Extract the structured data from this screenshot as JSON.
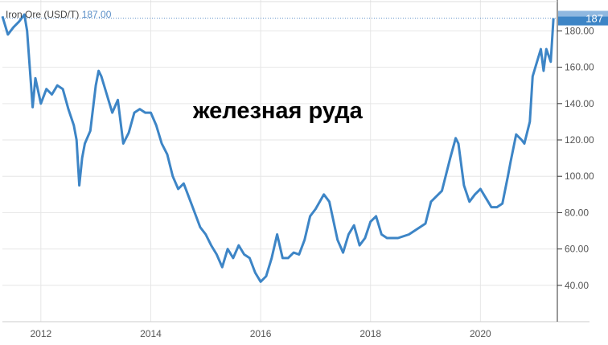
{
  "chart_data": {
    "type": "line",
    "title": "",
    "overlay_text": "железная руда",
    "legend": {
      "name": "Iron Ore (USD/T)",
      "value": "187.00"
    },
    "last_value_label": "187",
    "xlabel": "",
    "ylabel": "",
    "xlim": [
      2011.3,
      2021.4
    ],
    "ylim": [
      20,
      197
    ],
    "x_ticks": [
      "2012",
      "2014",
      "2016",
      "2018",
      "2020"
    ],
    "y_ticks": [
      "40.00",
      "60.00",
      "80.00",
      "100.00",
      "120.00",
      "140.00",
      "160.00",
      "180.00"
    ],
    "y_axis_position": "right",
    "grid": true,
    "colors": {
      "line": "#3d85c6",
      "label_bg": "#3d85c6"
    },
    "series": [
      {
        "name": "Iron Ore (USD/T)",
        "x": [
          2011.3,
          2011.4,
          2011.5,
          2011.6,
          2011.7,
          2011.75,
          2011.85,
          2011.9,
          2012.0,
          2012.1,
          2012.2,
          2012.3,
          2012.4,
          2012.5,
          2012.6,
          2012.65,
          2012.7,
          2012.75,
          2012.8,
          2012.9,
          2013.0,
          2013.05,
          2013.1,
          2013.2,
          2013.3,
          2013.4,
          2013.5,
          2013.6,
          2013.7,
          2013.8,
          2013.9,
          2014.0,
          2014.1,
          2014.2,
          2014.3,
          2014.4,
          2014.5,
          2014.6,
          2014.7,
          2014.8,
          2014.9,
          2015.0,
          2015.1,
          2015.2,
          2015.3,
          2015.4,
          2015.5,
          2015.6,
          2015.7,
          2015.8,
          2015.9,
          2016.0,
          2016.1,
          2016.2,
          2016.3,
          2016.4,
          2016.5,
          2016.6,
          2016.7,
          2016.8,
          2016.9,
          2017.0,
          2017.15,
          2017.25,
          2017.4,
          2017.5,
          2017.6,
          2017.7,
          2017.8,
          2017.9,
          2018.0,
          2018.1,
          2018.2,
          2018.3,
          2018.5,
          2018.7,
          2018.9,
          2019.0,
          2019.1,
          2019.3,
          2019.45,
          2019.55,
          2019.6,
          2019.7,
          2019.8,
          2019.9,
          2020.0,
          2020.1,
          2020.2,
          2020.3,
          2020.4,
          2020.5,
          2020.55,
          2020.65,
          2020.75,
          2020.8,
          2020.9,
          2020.95,
          2021.0,
          2021.1,
          2021.15,
          2021.2,
          2021.28,
          2021.33
        ],
        "y": [
          188,
          178,
          182,
          185,
          189,
          180,
          138,
          154,
          140,
          148,
          145,
          150,
          148,
          137,
          128,
          120,
          95,
          110,
          118,
          125,
          150,
          158,
          155,
          145,
          135,
          142,
          118,
          124,
          135,
          137,
          135,
          135,
          128,
          118,
          112,
          100,
          93,
          96,
          88,
          80,
          72,
          68,
          62,
          57,
          50,
          60,
          55,
          62,
          57,
          55,
          47,
          42,
          45,
          55,
          68,
          55,
          55,
          58,
          57,
          65,
          78,
          82,
          90,
          86,
          65,
          58,
          68,
          73,
          62,
          66,
          75,
          78,
          68,
          66,
          66,
          68,
          72,
          74,
          86,
          92,
          110,
          121,
          118,
          95,
          86,
          90,
          93,
          88,
          83,
          83,
          85,
          100,
          108,
          123,
          120,
          118,
          130,
          155,
          160,
          170,
          158,
          170,
          163,
          187
        ]
      }
    ]
  }
}
